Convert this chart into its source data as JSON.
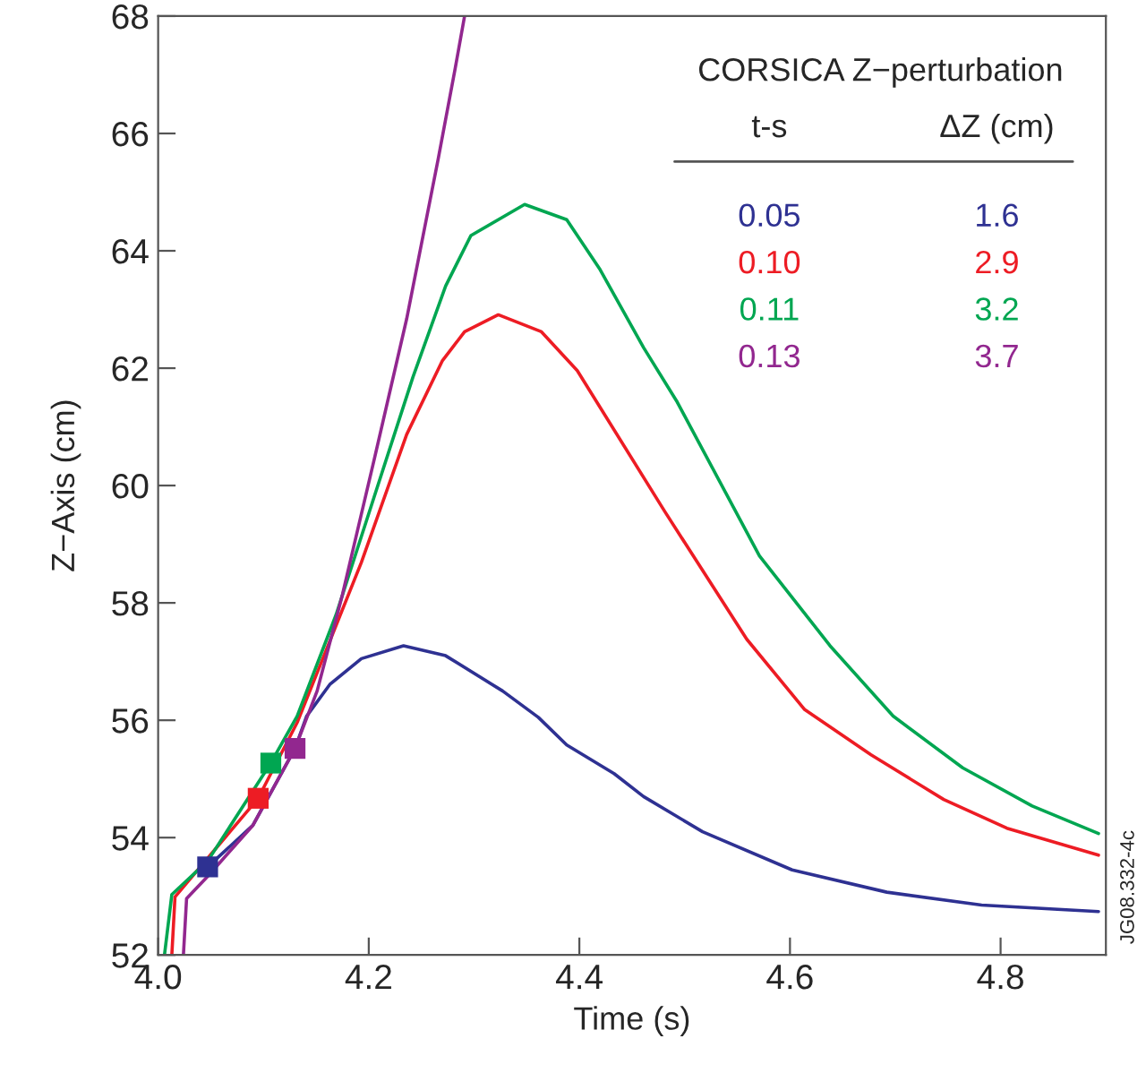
{
  "chart_data": {
    "type": "line",
    "xlabel": "Time (s)",
    "ylabel": "Z−Axis (cm)",
    "legend_title": "CORSICA Z−perturbation",
    "xlim": [
      4.0,
      4.9
    ],
    "ylim": [
      52,
      68
    ],
    "xticks": [
      {
        "value": 4.0,
        "label": "4.0"
      },
      {
        "value": 4.2,
        "label": "4.2"
      },
      {
        "value": 4.4,
        "label": "4.4"
      },
      {
        "value": 4.6,
        "label": "4.6"
      },
      {
        "value": 4.8,
        "label": "4.8"
      }
    ],
    "yticks": [
      52,
      54,
      56,
      58,
      60,
      62,
      64,
      66,
      68
    ],
    "grid": false,
    "legend": "top right",
    "marker": "none",
    "line_style": "solid",
    "annotations": [
      "t-s",
      "ΔZ (cm)",
      "1.6",
      "2.9",
      "3.2",
      "3.7",
      "JG08.332-4c"
    ],
    "series": [
      {
        "name": "0.05",
        "color": "#2e3192",
        "x": [
          4.047,
          4.09,
          4.13,
          4.141,
          4.163,
          4.193,
          4.233,
          4.273,
          4.327,
          4.361,
          4.388,
          4.433,
          4.461,
          4.517,
          4.602,
          4.692,
          4.782,
          4.893
        ],
        "values": [
          53.5,
          54.21,
          55.52,
          56.07,
          56.61,
          57.05,
          57.27,
          57.1,
          56.5,
          56.05,
          55.58,
          55.09,
          54.7,
          54.1,
          53.45,
          53.07,
          52.85,
          52.74
        ]
      },
      {
        "name": "0.10",
        "color": "#ed1c24",
        "x": [
          4.013,
          4.016,
          4.095,
          4.132,
          4.193,
          4.236,
          4.27,
          4.291,
          4.323,
          4.364,
          4.398,
          4.481,
          4.559,
          4.614,
          4.677,
          4.746,
          4.806,
          4.893
        ],
        "values": [
          52,
          52.99,
          54.67,
          55.96,
          58.69,
          60.87,
          62.13,
          62.62,
          62.91,
          62.62,
          61.96,
          59.56,
          57.38,
          56.18,
          55.41,
          54.65,
          54.16,
          53.7
        ]
      },
      {
        "name": "0.11",
        "color": "#00a651",
        "x": [
          4.006,
          4.013,
          4.047,
          4.107,
          4.132,
          4.169,
          4.205,
          4.242,
          4.273,
          4.297,
          4.348,
          4.388,
          4.419,
          4.461,
          4.493,
          4.571,
          4.638,
          4.698,
          4.764,
          4.83,
          4.893
        ],
        "values": [
          52,
          53.03,
          53.6,
          55.27,
          56.07,
          57.8,
          59.8,
          61.85,
          63.4,
          64.26,
          64.79,
          64.53,
          63.7,
          62.35,
          61.42,
          58.8,
          57.27,
          56.07,
          55.19,
          54.54,
          54.07
        ]
      },
      {
        "name": "0.13",
        "color": "#92278f",
        "x": [
          4.024,
          4.027,
          4.047,
          4.09,
          4.13,
          4.151,
          4.175,
          4.205,
          4.236,
          4.266,
          4.282,
          4.291
        ],
        "values": [
          52,
          52.96,
          53.34,
          54.21,
          55.52,
          56.5,
          58.14,
          60.43,
          62.84,
          65.57,
          67.1,
          68
        ]
      },
      {
        "type": "scatter",
        "marker": "square",
        "color": "#2e3192",
        "x": [
          4.047
        ],
        "values": [
          53.5
        ]
      },
      {
        "type": "scatter",
        "marker": "square",
        "color": "#ed1c24",
        "x": [
          4.095
        ],
        "values": [
          54.67
        ]
      },
      {
        "type": "scatter",
        "marker": "square",
        "color": "#00a651",
        "x": [
          4.107
        ],
        "values": [
          55.27
        ]
      },
      {
        "type": "scatter",
        "marker": "square",
        "color": "#92278f",
        "x": [
          4.13
        ],
        "values": [
          55.52
        ]
      }
    ]
  }
}
